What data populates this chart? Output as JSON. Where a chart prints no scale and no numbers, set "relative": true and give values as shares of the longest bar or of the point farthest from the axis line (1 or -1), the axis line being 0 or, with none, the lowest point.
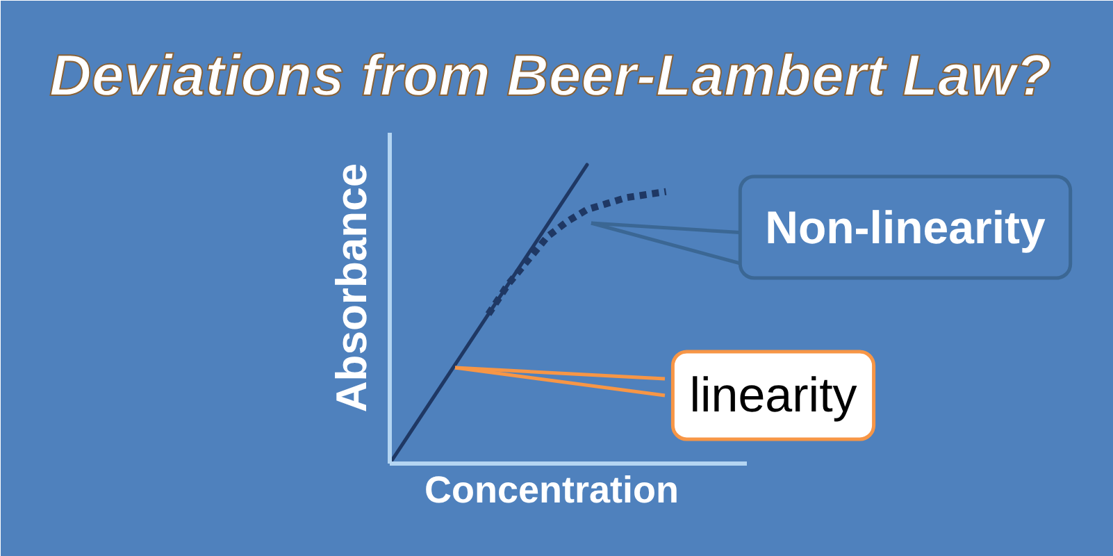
{
  "chart_data": {
    "type": "line",
    "title": "Deviations from Beer-Lambert Law?",
    "xlabel": "Concentration",
    "ylabel": "Absorbance",
    "relative": true,
    "categories": [
      null,
      null,
      null,
      null,
      null,
      null,
      null,
      null,
      null,
      null,
      null,
      null,
      null,
      null,
      null
    ],
    "series": [
      {
        "name": "linearity",
        "color": "#1f3864",
        "line_style": "solid",
        "values": [
          0,
          0.1,
          0.2,
          0.3,
          0.4,
          0.5,
          0.6,
          0.7,
          0.8,
          0.9,
          1,
          null,
          null,
          null,
          null
        ]
      },
      {
        "name": "Non-linearity",
        "color": "#1f3864",
        "line_style": "dotted",
        "values": [
          null,
          null,
          null,
          null,
          null,
          0.5,
          0.6,
          0.68,
          0.76,
          0.81,
          0.85,
          0.87,
          0.89,
          0.9,
          0.91
        ]
      }
    ]
  }
}
